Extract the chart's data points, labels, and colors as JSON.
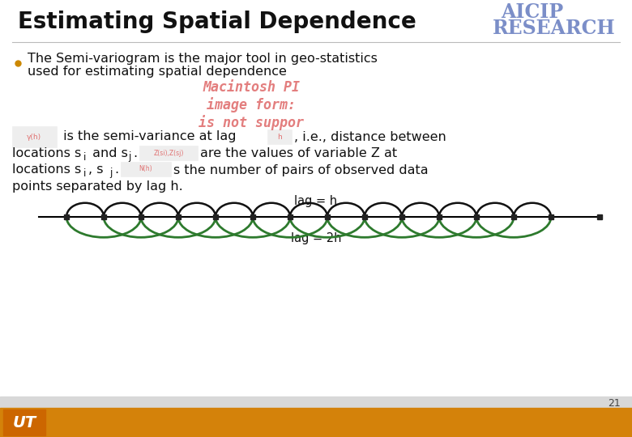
{
  "title": "Estimating Spatial Dependence",
  "aicip_line1": "AICIP",
  "aicip_line2": "RESEARCH",
  "bullet_text_line1": "The Semi-variogram is the major tool in geo-statistics",
  "bullet_text_line2": "used for estimating spatial dependence",
  "formula_image_text": "Macintosh PI\nimage form:\nis not suppor",
  "body_line1a": " is the semi-variance at lag",
  "body_line1b": ", i.e., distance between",
  "body_line2a": "locations s",
  "body_line2b": " and s",
  "body_line2c": "are the values of variable Z at",
  "body_line3a": "locations s",
  "body_line3b": ", s",
  "body_line3c": "s the number of pairs of observed data",
  "body_line4": "points separated by lag h.",
  "lag_h_label": "lag = h",
  "lag_2h_label": "lag = 2h",
  "page_number": "21",
  "bg_color": "#ffffff",
  "title_color": "#111111",
  "aicip_color": "#7b8ec8",
  "bullet_color": "#111111",
  "body_color": "#111111",
  "formula_color": "#e07070",
  "footer_bar_color": "#d4820a",
  "footer_bg_color": "#d8d8d8",
  "circle_color_black": "#111111",
  "circle_color_green": "#2d7a2d",
  "line_color": "#111111",
  "small_img_color": "#e07070"
}
